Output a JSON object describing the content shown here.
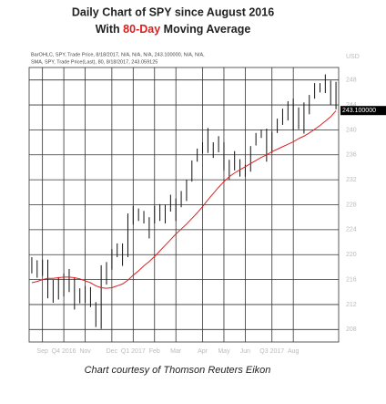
{
  "chart_data": {
    "type": "ohlc",
    "title": "Daily Chart of SPY since August 2016",
    "subtitle_parts": [
      "With",
      "80-Day",
      "Moving Average"
    ],
    "legend_lines": [
      "BarOHLC, SPY, Trade Price, 8/18/2017, N/A, N/A, N/A, 243.100000, N/A, N/A,",
      "SMA, SPY, Trade Price(Last), 80, 8/18/2017, 243.059125"
    ],
    "axis_unit": "USD",
    "caption": "Chart courtesy of Thomson Reuters Eikon",
    "last_price": {
      "value": 243.1,
      "label": "243.100000"
    },
    "high": [
      219.6,
      219.1,
      219.2,
      219.2,
      216.0,
      216.4,
      217.0,
      217.7,
      216.3,
      214.6,
      215.0,
      214.8,
      212.4,
      218.3,
      218.8,
      220.9,
      221.8,
      221.8,
      226.6,
      227.8,
      227.4,
      227.0,
      226.0,
      227.8,
      228.1,
      228.0,
      229.6,
      229.0,
      230.2,
      232.0,
      235.1,
      237.0,
      238.0,
      240.3,
      238.0,
      239.0,
      238.0,
      235.2,
      236.6,
      235.3,
      234.4,
      237.4,
      239.5,
      240.0,
      240.2,
      239.7,
      241.8,
      243.4,
      244.6,
      245.0,
      243.6,
      244.4,
      245.6,
      247.5,
      247.5,
      248.9,
      247.9,
      247.7
    ],
    "low": [
      217.0,
      216.3,
      216.6,
      213.0,
      212.3,
      212.8,
      213.3,
      214.0,
      211.2,
      212.2,
      212.3,
      211.6,
      208.4,
      208.1,
      215.2,
      217.6,
      219.6,
      218.2,
      219.6,
      224.8,
      225.4,
      225.0,
      222.6,
      225.0,
      225.4,
      225.0,
      226.9,
      225.4,
      227.6,
      228.6,
      231.7,
      234.9,
      236.2,
      236.3,
      235.5,
      236.4,
      233.5,
      232.0,
      233.5,
      232.5,
      232.5,
      233.3,
      237.5,
      238.7,
      234.9,
      236.3,
      239.5,
      240.8,
      241.5,
      239.9,
      240.1,
      239.4,
      242.5,
      245.0,
      246.0,
      245.9,
      244.0,
      243.3
    ],
    "sma": [
      215.5,
      215.7,
      216.0,
      216.2,
      216.2,
      216.3,
      216.4,
      216.4,
      216.3,
      216.1,
      215.8,
      215.5,
      215.0,
      214.7,
      214.6,
      214.7,
      215.0,
      215.3,
      215.9,
      216.7,
      217.4,
      218.2,
      218.9,
      219.7,
      220.6,
      221.5,
      222.4,
      223.3,
      224.1,
      224.9,
      225.8,
      226.7,
      227.7,
      228.8,
      229.8,
      230.8,
      231.7,
      232.5,
      233.1,
      233.6,
      234.1,
      234.6,
      235.1,
      235.6,
      236.0,
      236.5,
      236.9,
      237.3,
      237.7,
      238.1,
      238.6,
      239.0,
      239.5,
      240.1,
      240.7,
      241.4,
      242.1,
      243.06
    ],
    "bar_color": "#111111",
    "sma_color": "#e02020",
    "ylim": [
      206,
      250
    ],
    "yticks": [
      208,
      212,
      216,
      220,
      224,
      228,
      232,
      236,
      240,
      244,
      248
    ],
    "xticks": [
      {
        "value": 2,
        "label": "Sep"
      },
      {
        "value": 6,
        "label": "Q4 2016"
      },
      {
        "value": 10,
        "label": "Nov"
      },
      {
        "value": 15,
        "label": "Dec"
      },
      {
        "value": 19,
        "label": "Q1 2017"
      },
      {
        "value": 23,
        "label": "Feb"
      },
      {
        "value": 27,
        "label": "Mar"
      },
      {
        "value": 32,
        "label": "Apr"
      },
      {
        "value": 36,
        "label": "May"
      },
      {
        "value": 40,
        "label": "Jun"
      },
      {
        "value": 45,
        "label": "Q3 2017"
      },
      {
        "value": 49,
        "label": "Aug"
      }
    ],
    "grid": true
  }
}
